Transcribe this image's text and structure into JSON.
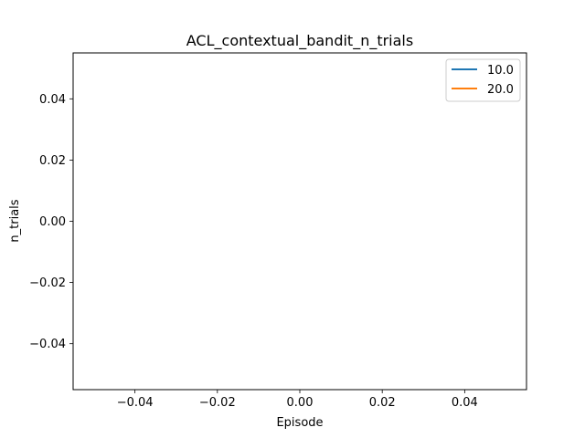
{
  "chart_data": {
    "type": "line",
    "title": "ACL_contextual_bandit_n_trials",
    "xlabel": "Episode",
    "ylabel": "n_trials",
    "xlim": [
      -0.055,
      0.055
    ],
    "ylim": [
      -0.055,
      0.055
    ],
    "x_ticks": [
      -0.04,
      -0.02,
      0.0,
      0.02,
      0.04
    ],
    "x_tick_labels": [
      "−0.04",
      "−0.02",
      "0.00",
      "0.02",
      "0.04"
    ],
    "y_ticks": [
      -0.04,
      -0.02,
      0.0,
      0.02,
      0.04
    ],
    "y_tick_labels": [
      "−0.04",
      "−0.02",
      "0.00",
      "0.02",
      "0.04"
    ],
    "grid": false,
    "legend_position": "top-right",
    "series": [
      {
        "name": "10.0",
        "color": "#1f77b4",
        "x": [],
        "y": []
      },
      {
        "name": "20.0",
        "color": "#ff7f0e",
        "x": [],
        "y": []
      }
    ]
  }
}
